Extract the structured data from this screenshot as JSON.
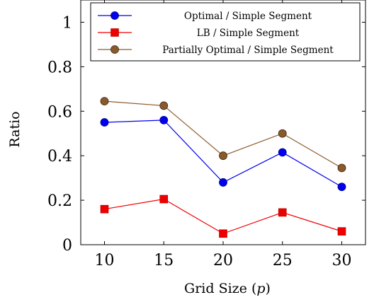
{
  "chart_data": {
    "type": "line",
    "x": [
      10,
      15,
      20,
      25,
      30
    ],
    "xlabel": "Grid Size (p)",
    "ylabel": "Ratio",
    "xlim": [
      8,
      32
    ],
    "ylim": [
      0,
      1.1
    ],
    "xticks": [
      10,
      15,
      20,
      25,
      30
    ],
    "yticks": [
      0,
      0.2,
      0.4,
      0.6,
      0.8,
      1
    ],
    "ytick_labels": [
      "0",
      "0.2",
      "0.4",
      "0.6",
      "0.8",
      "1"
    ],
    "legend_position": "top-right",
    "series": [
      {
        "name": "Optimal / Simple Segment",
        "values": [
          0.55,
          0.56,
          0.28,
          0.415,
          0.26
        ],
        "color": "#0000ee",
        "marker": "circle"
      },
      {
        "name": "LB / Simple Segment",
        "values": [
          0.16,
          0.205,
          0.05,
          0.145,
          0.06
        ],
        "color": "#ee0000",
        "marker": "square"
      },
      {
        "name": "Partially Optimal / Simple Segment",
        "values": [
          0.645,
          0.625,
          0.4,
          0.5,
          0.345
        ],
        "color": "#8b5a2b",
        "marker": "circle"
      }
    ]
  }
}
